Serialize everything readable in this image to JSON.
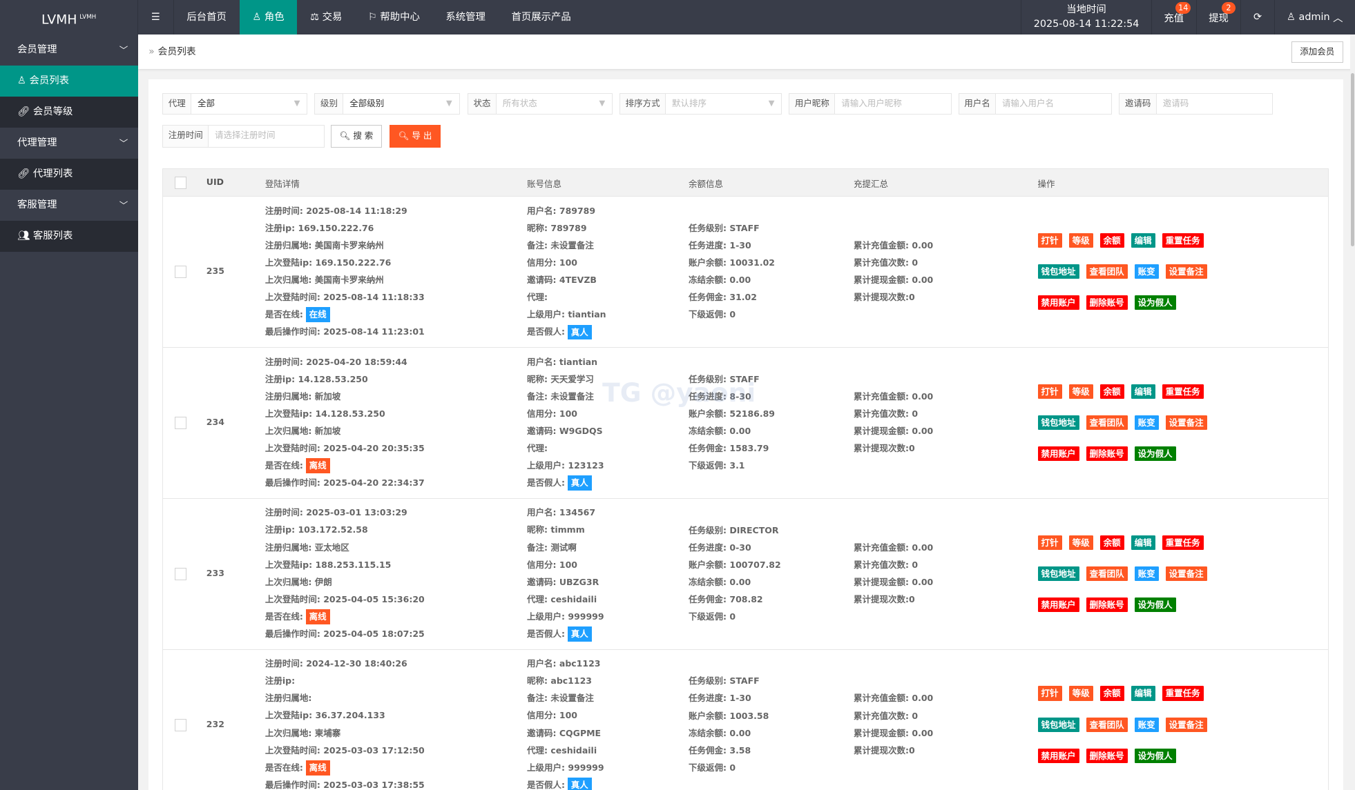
{
  "header": {
    "logo": "LVMH",
    "logo_sup": "LVMH",
    "menu_icon": "hamburger-icon",
    "nav": [
      "后台首页",
      "角色",
      "交易",
      "帮助中心",
      "系统管理",
      "首页展示产品"
    ],
    "active_nav": "角色",
    "time_label": "当地时间",
    "time_value": "2025-08-14 11:22:54",
    "recharge": "充值",
    "recharge_badge": "14",
    "withdraw": "提现",
    "withdraw_badge": "2",
    "user": "admin"
  },
  "sidebar": {
    "groups": [
      {
        "label": "会员管理",
        "items": [
          "会员列表",
          "会员等级"
        ]
      },
      {
        "label": "代理管理",
        "items": [
          "代理列表"
        ]
      },
      {
        "label": "客服管理",
        "items": [
          "客服列表"
        ]
      }
    ]
  },
  "breadcrumb": {
    "current": "会员列表",
    "add_button": "添加会员"
  },
  "filters": {
    "agent": {
      "label": "代理",
      "value": "全部"
    },
    "level": {
      "label": "级别",
      "value": "全部级别"
    },
    "status": {
      "label": "状态",
      "placeholder": "所有状态"
    },
    "sort": {
      "label": "排序方式",
      "placeholder": "默认排序"
    },
    "nickname": {
      "label": "用户昵称",
      "placeholder": "请输入用户昵称"
    },
    "username": {
      "label": "用户名",
      "placeholder": "请输入用户名"
    },
    "invite": {
      "label": "邀请码",
      "placeholder": "邀请码"
    },
    "regtime": {
      "label": "注册时间",
      "placeholder": "请选择注册时间"
    },
    "search": "搜 索",
    "export": "导 出"
  },
  "table": {
    "headers": [
      "UID",
      "登陆详情",
      "账号信息",
      "余额信息",
      "充提汇总",
      "操作"
    ],
    "actions": [
      [
        "打针",
        "等级",
        "余额",
        "编辑",
        "重置任务"
      ],
      [
        "钱包地址",
        "查看团队",
        "账变",
        "设置备注"
      ],
      [
        "禁用账户",
        "删除账号",
        "设为假人"
      ]
    ],
    "rows": [
      {
        "uid": "235",
        "login": [
          "注册时间:  2025-08-14 11:18:29",
          "注册ip: 169.150.222.76",
          "注册归属地: 美国南卡罗来纳州",
          "上次登陆ip: 169.150.222.76",
          "上次归属地: 美国南卡罗来纳州",
          "上次登陆时间: 2025-08-14 11:18:33",
          "是否在线:",
          "最后操作时间: 2025-08-14 11:23:01"
        ],
        "online": "在线",
        "account": [
          "用户名: 789789",
          "昵称: 789789",
          "备注: 未设置备注",
          "信用分: 100",
          "邀请码: 4TEVZB",
          "代理:",
          "上级用户: tiantian",
          "是否假人:"
        ],
        "fake": "真人",
        "balance": [
          "任务级别: STAFF",
          "任务进度: 1-30",
          "账户余额: 10031.02",
          "冻结余额: 0.00",
          "任务佣金: 31.02",
          "下级返佣: 0"
        ],
        "summary": [
          "累计充值金额: 0.00",
          "累计充值次数: 0",
          "累计提现金额: 0.00",
          "累计提现次数:0"
        ]
      },
      {
        "uid": "234",
        "login": [
          "注册时间:  2025-04-20 18:59:44",
          "注册ip: 14.128.53.250",
          "注册归属地: 新加坡",
          "上次登陆ip: 14.128.53.250",
          "上次归属地: 新加坡",
          "上次登陆时间: 2025-04-20 20:35:35",
          "是否在线:",
          "最后操作时间: 2025-04-20 22:34:37"
        ],
        "online": "离线",
        "account": [
          "用户名: tiantian",
          "昵称: 天天爱学习",
          "备注: 未设置备注",
          "信用分: 100",
          "邀请码: W9GDQS",
          "代理:",
          "上级用户: 123123",
          "是否假人:"
        ],
        "fake": "真人",
        "balance": [
          "任务级别: STAFF",
          "任务进度: 8-30",
          "账户余额: 52186.89",
          "冻结余额: 0.00",
          "任务佣金: 1583.79",
          "下级返佣: 3.1"
        ],
        "summary": [
          "累计充值金额: 0.00",
          "累计充值次数: 0",
          "累计提现金额: 0.00",
          "累计提现次数:0"
        ]
      },
      {
        "uid": "233",
        "login": [
          "注册时间:  2025-03-01 13:03:29",
          "注册ip: 103.172.52.58",
          "注册归属地: 亚太地区",
          "上次登陆ip: 188.253.115.15",
          "上次归属地: 伊朗",
          "上次登陆时间: 2025-04-05 15:36:20",
          "是否在线:",
          "最后操作时间: 2025-04-05 18:07:25"
        ],
        "online": "离线",
        "account": [
          "用户名: 134567",
          "昵称: timmm",
          "备注: 测试啊",
          "信用分: 100",
          "邀请码: UBZG3R",
          "代理: ceshidaili",
          "上级用户: 999999",
          "是否假人:"
        ],
        "fake": "真人",
        "balance": [
          "任务级别: DIRECTOR",
          "任务进度: 0-30",
          "账户余额: 100707.82",
          "冻结余额: 0.00",
          "任务佣金: 708.82",
          "下级返佣: 0"
        ],
        "summary": [
          "累计充值金额: 0.00",
          "累计充值次数: 0",
          "累计提现金额: 0.00",
          "累计提现次数:0"
        ]
      },
      {
        "uid": "232",
        "login": [
          "注册时间:  2024-12-30 18:40:26",
          "注册ip:",
          "注册归属地:",
          "上次登陆ip: 36.37.204.133",
          "上次归属地: 柬埔寨",
          "上次登陆时间: 2025-03-03 17:12:50",
          "是否在线:",
          "最后操作时间: 2025-03-03 17:38:55"
        ],
        "online": "离线",
        "account": [
          "用户名: abc1123",
          "昵称: abc1123",
          "备注: 未设置备注",
          "信用分: 100",
          "邀请码: CQGPME",
          "代理: ceshidaili",
          "上级用户: 999999",
          "是否假人:"
        ],
        "fake": "真人",
        "balance": [
          "任务级别: STAFF",
          "任务进度: 1-30",
          "账户余额: 1003.58",
          "冻结余额: 0.00",
          "任务佣金: 3.58",
          "下级返佣: 0"
        ],
        "summary": [
          "累计充值金额: 0.00",
          "累计充值次数: 0",
          "累计提现金额: 0.00",
          "累计提现次数:0"
        ]
      }
    ]
  },
  "colors": {
    "topbar": "#393D49",
    "accent": "#009688",
    "orange": "#FF5722",
    "red": "#FF0000",
    "blue": "#1E9FFF",
    "green": "#008000",
    "online": "#1E9FFF",
    "offline": "#FF5722"
  },
  "watermark": "TG @yaoni"
}
